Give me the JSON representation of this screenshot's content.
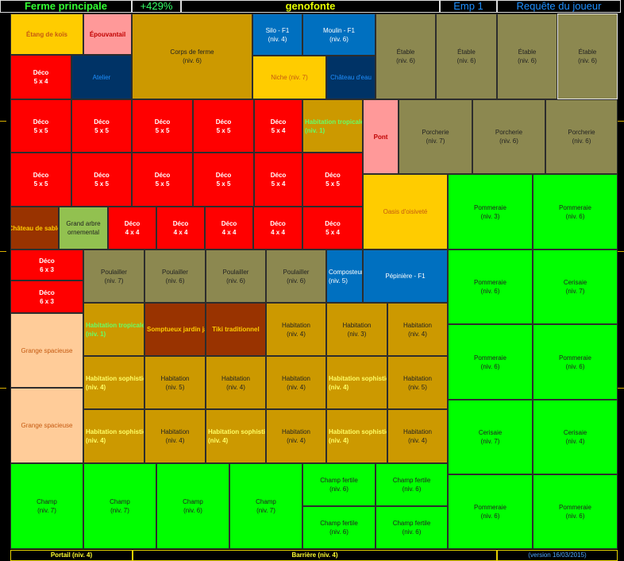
{
  "header": {
    "title": "Ferme principale",
    "percent": "+429%",
    "player": "genofonte",
    "slot": "Emp 1",
    "request": "Requête du joueur"
  },
  "footer": {
    "gate": "Portail (niv. 4)",
    "fence": "Barrière (niv. 4)",
    "version": "(version 16/03/2015)"
  },
  "colors": {
    "deco": "#ff0000",
    "orange": "#ffcc00",
    "brown_gold": "#cc9900",
    "olive": "#8c8850",
    "green": "#00ff00",
    "navy": "#003366",
    "blue": "#0070c0",
    "pink": "#ff9999",
    "rust": "#993300",
    "peach": "#ffcc99",
    "grass": "#92c150"
  },
  "tiles": [
    {
      "l1": "Étang de koïs",
      "l2": ""
    },
    {
      "l1": "Épouvantail",
      "l2": ""
    },
    {
      "l1": "Corps de ferme",
      "l2": "(niv. 6)"
    },
    {
      "l1": "Silo - F1",
      "l2": "(niv. 4)"
    },
    {
      "l1": "Moulin - F1",
      "l2": "(niv. 6)"
    },
    {
      "l1": "Étable",
      "l2": "(niv. 6)"
    },
    {
      "l1": "Étable",
      "l2": "(niv. 6)"
    },
    {
      "l1": "Étable",
      "l2": "(niv. 6)"
    },
    {
      "l1": "Étable",
      "l2": "(niv. 6)"
    },
    {
      "l1": "Déco",
      "l2": "5 x 4"
    },
    {
      "l1": "Atelier",
      "l2": ""
    },
    {
      "l1": "Niche (niv. 7)",
      "l2": ""
    },
    {
      "l1": "Château d'eau",
      "l2": ""
    },
    {
      "l1": "Déco",
      "l2": "5 x 5"
    },
    {
      "l1": "Déco",
      "l2": "5 x 5"
    },
    {
      "l1": "Déco",
      "l2": "5 x 5"
    },
    {
      "l1": "Déco",
      "l2": "5 x 5"
    },
    {
      "l1": "Déco",
      "l2": "5 x 4"
    },
    {
      "l1": "Habitation tropicale",
      "l2": "(niv. 1)"
    },
    {
      "l1": "Pont",
      "l2": ""
    },
    {
      "l1": "Porcherie",
      "l2": "(niv. 7)"
    },
    {
      "l1": "Porcherie",
      "l2": "(niv. 6)"
    },
    {
      "l1": "Porcherie",
      "l2": "(niv. 6)"
    },
    {
      "l1": "Déco",
      "l2": "5 x 5"
    },
    {
      "l1": "Déco",
      "l2": "5 x 5"
    },
    {
      "l1": "Déco",
      "l2": "5 x 5"
    },
    {
      "l1": "Déco",
      "l2": "5 x 5"
    },
    {
      "l1": "Déco",
      "l2": "5 x 4"
    },
    {
      "l1": "Déco",
      "l2": "5 x 5"
    },
    {
      "l1": "Château de sable",
      "l2": ""
    },
    {
      "l1": "Grand arbre",
      "l2": "ornemental"
    },
    {
      "l1": "Déco",
      "l2": "4 x 4"
    },
    {
      "l1": "Déco",
      "l2": "4 x 4"
    },
    {
      "l1": "Déco",
      "l2": "4 x 4"
    },
    {
      "l1": "Déco",
      "l2": "4 x 4"
    },
    {
      "l1": "Déco",
      "l2": "5 x 4"
    },
    {
      "l1": "Oasis d'oisiveté",
      "l2": ""
    },
    {
      "l1": "Pommeraie",
      "l2": "(niv. 3)"
    },
    {
      "l1": "Pommeraie",
      "l2": "(niv. 6)"
    },
    {
      "l1": "Déco",
      "l2": "6 x 3"
    },
    {
      "l1": "Déco",
      "l2": "6 x 3"
    },
    {
      "l1": "Poulailler",
      "l2": "(niv. 7)"
    },
    {
      "l1": "Poulailler",
      "l2": "(niv. 6)"
    },
    {
      "l1": "Poulailler",
      "l2": "(niv. 6)"
    },
    {
      "l1": "Poulailler",
      "l2": "(niv. 6)"
    },
    {
      "l1": "Composteur",
      "l2": "(niv. 5)"
    },
    {
      "l1": "Pépinière - F1",
      "l2": ""
    },
    {
      "l1": "Pommeraie",
      "l2": "(niv. 6)"
    },
    {
      "l1": "Cerisaie",
      "l2": "(niv. 7)"
    },
    {
      "l1": "Grange spacieuse",
      "l2": ""
    },
    {
      "l1": "Habitation tropicale",
      "l2": "(niv. 1)"
    },
    {
      "l1": "Somptueux jardin japonais",
      "l2": ""
    },
    {
      "l1": "Tiki traditionnel",
      "l2": ""
    },
    {
      "l1": "Habitation",
      "l2": "(niv. 4)"
    },
    {
      "l1": "Habitation",
      "l2": "(niv. 3)"
    },
    {
      "l1": "Habitation",
      "l2": "(niv. 4)"
    },
    {
      "l1": "Habitation sophistiquée",
      "l2": "(niv. 4)"
    },
    {
      "l1": "Habitation",
      "l2": "(niv. 5)"
    },
    {
      "l1": "Habitation",
      "l2": "(niv. 4)"
    },
    {
      "l1": "Habitation",
      "l2": "(niv. 4)"
    },
    {
      "l1": "Habitation sophistiquée",
      "l2": "(niv. 4)"
    },
    {
      "l1": "Habitation",
      "l2": "(niv. 5)"
    },
    {
      "l1": "Pommeraie",
      "l2": "(niv. 6)"
    },
    {
      "l1": "Pommeraie",
      "l2": "(niv. 6)"
    },
    {
      "l1": "Grange spacieuse",
      "l2": ""
    },
    {
      "l1": "Habitation sophistiquée",
      "l2": "(niv. 4)"
    },
    {
      "l1": "Habitation",
      "l2": "(niv. 4)"
    },
    {
      "l1": "Habitation sophistiquée",
      "l2": "(niv. 4)"
    },
    {
      "l1": "Habitation",
      "l2": "(niv. 4)"
    },
    {
      "l1": "Habitation sophistiquée",
      "l2": "(niv. 4)"
    },
    {
      "l1": "Habitation",
      "l2": "(niv. 4)"
    },
    {
      "l1": "Cerisaie",
      "l2": "(niv. 7)"
    },
    {
      "l1": "Cerisaie",
      "l2": "(niv. 4)"
    },
    {
      "l1": "Champ",
      "l2": "(niv. 7)"
    },
    {
      "l1": "Champ",
      "l2": "(niv. 7)"
    },
    {
      "l1": "Champ",
      "l2": "(niv. 6)"
    },
    {
      "l1": "Champ",
      "l2": "(niv. 7)"
    },
    {
      "l1": "Champ fertile",
      "l2": "(niv. 6)"
    },
    {
      "l1": "Champ fertile",
      "l2": "(niv. 6)"
    },
    {
      "l1": "Champ fertile",
      "l2": "(niv. 6)"
    },
    {
      "l1": "Champ fertile",
      "l2": "(niv. 6)"
    },
    {
      "l1": "Pommeraie",
      "l2": "(niv. 6)"
    },
    {
      "l1": "Pommeraie",
      "l2": "(niv. 6)"
    }
  ]
}
